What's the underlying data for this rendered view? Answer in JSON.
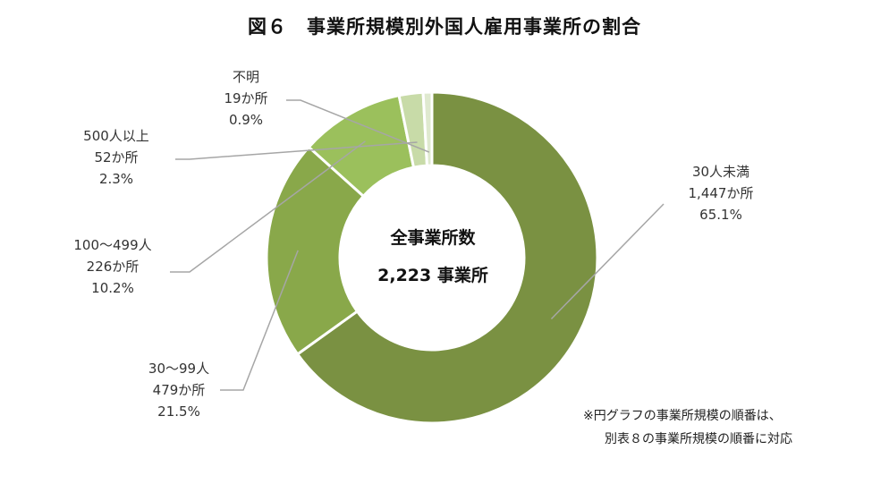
{
  "chart_data": {
    "type": "pie",
    "donut": true,
    "title": "図６　事業所規模別外国人雇用事業所の割合",
    "center_label": {
      "line1": "全事業所数",
      "line2": "2,223 事業所"
    },
    "slices": [
      {
        "name": "30人未満",
        "count": 1447,
        "count_label": "1,447か所",
        "percent": 65.1,
        "percent_label": "65.1%",
        "color": "#7a9142"
      },
      {
        "name": "30～99人",
        "count": 479,
        "count_label": "479か所",
        "percent": 21.5,
        "percent_label": "21.5%",
        "color": "#89a84a"
      },
      {
        "name": "100～499人",
        "count": 226,
        "count_label": "226か所",
        "percent": 10.2,
        "percent_label": "10.2%",
        "color": "#9bc05c"
      },
      {
        "name": "500人以上",
        "count": 52,
        "count_label": "52か所",
        "percent": 2.3,
        "percent_label": "2.3%",
        "color": "#c8dba8"
      },
      {
        "name": "不明",
        "count": 19,
        "count_label": "19か所",
        "percent": 0.9,
        "percent_label": "0.9%",
        "color": "#dfe9cf"
      }
    ],
    "legend": "none"
  },
  "footnote": {
    "line1": "※円グラフの事業所規模の順番は、",
    "line2": "別表８の事業所規模の順番に対応"
  }
}
